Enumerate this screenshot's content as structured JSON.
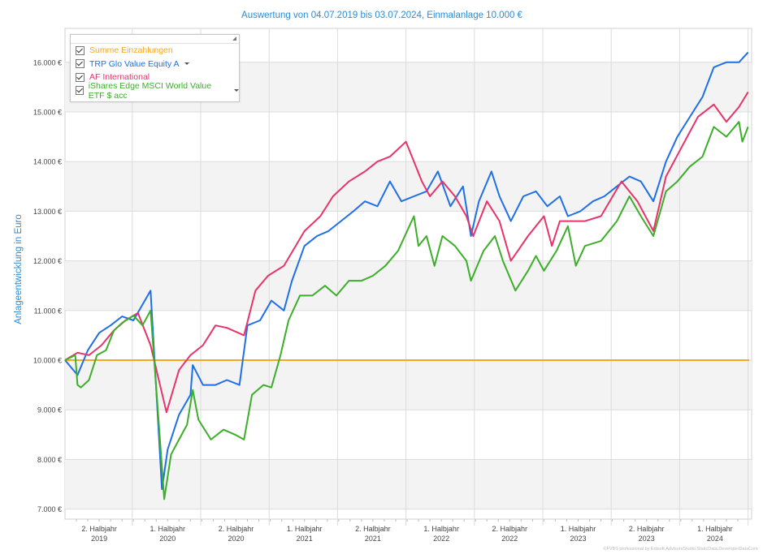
{
  "chart_data": {
    "type": "line",
    "title": "Auswertung von 04.07.2019 bis 03.07.2024, Einmalanlage 10.000 €",
    "ylabel": "Anlageentwicklung  in Euro",
    "xlabel": "",
    "x_unit": "months since 04.07.2019",
    "xlim": [
      0,
      60
    ],
    "ylim": [
      6800,
      16700
    ],
    "yticks": [
      7000,
      8000,
      9000,
      10000,
      11000,
      12000,
      13000,
      14000,
      15000,
      16000
    ],
    "ytick_labels": [
      "7.000 €",
      "8.000 €",
      "9.000 €",
      "10.000 €",
      "11.000 €",
      "12.000 €",
      "13.000 €",
      "14.000 €",
      "15.000 €",
      "16.000 €"
    ],
    "xticks": [
      {
        "l1": "2. Halbjahr",
        "l2": "2019"
      },
      {
        "l1": "1. Halbjahr",
        "l2": "2020"
      },
      {
        "l1": "2. Halbjahr",
        "l2": "2020"
      },
      {
        "l1": "1. Halbjahr",
        "l2": "2021"
      },
      {
        "l1": "2. Halbjahr",
        "l2": "2021"
      },
      {
        "l1": "1. Halbjahr",
        "l2": "2022"
      },
      {
        "l1": "2. Halbjahr",
        "l2": "2022"
      },
      {
        "l1": "1. Halbjahr",
        "l2": "2023"
      },
      {
        "l1": "2. Halbjahr",
        "l2": "2023"
      },
      {
        "l1": "1. Halbjahr",
        "l2": "2024"
      }
    ],
    "grid": true,
    "legend_position": "top-left",
    "series": [
      {
        "name": "Summe Einzahlungen",
        "color": "#f5a623",
        "dropdown": false,
        "points": [
          [
            0,
            10000
          ],
          [
            60,
            10000
          ]
        ]
      },
      {
        "name": "TRP Glo Value Equity A",
        "color": "#1f6fe8",
        "dropdown": true,
        "points": [
          [
            0,
            10000
          ],
          [
            1.1,
            9700
          ],
          [
            2,
            10200
          ],
          [
            3,
            10550
          ],
          [
            4,
            10700
          ],
          [
            5,
            10880
          ],
          [
            6,
            10800
          ],
          [
            7.5,
            11400
          ],
          [
            8.5,
            7400
          ],
          [
            9,
            8200
          ],
          [
            10,
            8900
          ],
          [
            11,
            9300
          ],
          [
            11.2,
            9900
          ],
          [
            12.1,
            9500
          ],
          [
            13.2,
            9500
          ],
          [
            14.2,
            9600
          ],
          [
            15.3,
            9500
          ],
          [
            16,
            10700
          ],
          [
            17.1,
            10800
          ],
          [
            18.1,
            11200
          ],
          [
            19.2,
            11000
          ],
          [
            19.9,
            11600
          ],
          [
            21,
            12300
          ],
          [
            22.1,
            12500
          ],
          [
            23.1,
            12600
          ],
          [
            24.2,
            12800
          ],
          [
            25.3,
            13000
          ],
          [
            26.3,
            13200
          ],
          [
            27.4,
            13100
          ],
          [
            28.5,
            13600
          ],
          [
            29.5,
            13200
          ],
          [
            30.6,
            13300
          ],
          [
            31.7,
            13400
          ],
          [
            32.7,
            13800
          ],
          [
            33.8,
            13100
          ],
          [
            34.9,
            13500
          ],
          [
            35.6,
            12500
          ],
          [
            36.3,
            13200
          ],
          [
            37.4,
            13800
          ],
          [
            38.1,
            13300
          ],
          [
            39.1,
            12800
          ],
          [
            40.2,
            13300
          ],
          [
            41.3,
            13400
          ],
          [
            42.3,
            13100
          ],
          [
            43.4,
            13300
          ],
          [
            44.1,
            12900
          ],
          [
            45.2,
            13000
          ],
          [
            46.3,
            13200
          ],
          [
            47.3,
            13300
          ],
          [
            48.4,
            13500
          ],
          [
            49.5,
            13700
          ],
          [
            50.5,
            13600
          ],
          [
            51.6,
            13200
          ],
          [
            52.7,
            14000
          ],
          [
            53.7,
            14500
          ],
          [
            54.8,
            14900
          ],
          [
            55.9,
            15300
          ],
          [
            56.9,
            15900
          ],
          [
            58,
            16000
          ],
          [
            59.1,
            16000
          ],
          [
            59.9,
            16200
          ]
        ]
      },
      {
        "name": "AF International",
        "color": "#e8336b",
        "dropdown": false,
        "points": [
          [
            0,
            10000
          ],
          [
            1.1,
            10150
          ],
          [
            2.1,
            10100
          ],
          [
            3.2,
            10300
          ],
          [
            4.3,
            10600
          ],
          [
            5.3,
            10800
          ],
          [
            6.4,
            10950
          ],
          [
            7.5,
            10300
          ],
          [
            8.9,
            8950
          ],
          [
            10,
            9800
          ],
          [
            11,
            10100
          ],
          [
            12.1,
            10300
          ],
          [
            13.2,
            10700
          ],
          [
            14.2,
            10650
          ],
          [
            15.7,
            10500
          ],
          [
            16.7,
            11400
          ],
          [
            17.8,
            11700
          ],
          [
            19.2,
            11900
          ],
          [
            21,
            12600
          ],
          [
            22.4,
            12900
          ],
          [
            23.5,
            13300
          ],
          [
            24.9,
            13600
          ],
          [
            26.3,
            13800
          ],
          [
            27.4,
            14000
          ],
          [
            28.5,
            14100
          ],
          [
            29.9,
            14400
          ],
          [
            31.3,
            13600
          ],
          [
            32,
            13300
          ],
          [
            33.1,
            13600
          ],
          [
            34.2,
            13300
          ],
          [
            35.2,
            12900
          ],
          [
            35.8,
            12500
          ],
          [
            37,
            13200
          ],
          [
            38.1,
            12800
          ],
          [
            39.1,
            12000
          ],
          [
            40.6,
            12500
          ],
          [
            42,
            12900
          ],
          [
            42.7,
            12300
          ],
          [
            43.4,
            12800
          ],
          [
            45.6,
            12800
          ],
          [
            47,
            12900
          ],
          [
            48.8,
            13600
          ],
          [
            50.2,
            13200
          ],
          [
            51.6,
            12600
          ],
          [
            52.7,
            13700
          ],
          [
            54.1,
            14300
          ],
          [
            55.5,
            14900
          ],
          [
            56.9,
            15150
          ],
          [
            58,
            14800
          ],
          [
            59.1,
            15100
          ],
          [
            59.9,
            15400
          ]
        ]
      },
      {
        "name": "iShares Edge MSCI World Value ETF $ acc",
        "color": "#3cae2a",
        "dropdown": true,
        "points": [
          [
            0,
            10000
          ],
          [
            0.9,
            10100
          ],
          [
            1.1,
            9500
          ],
          [
            1.4,
            9450
          ],
          [
            2.1,
            9600
          ],
          [
            2.8,
            10100
          ],
          [
            3.6,
            10200
          ],
          [
            4.3,
            10600
          ],
          [
            5,
            10750
          ],
          [
            6,
            10900
          ],
          [
            6.8,
            10700
          ],
          [
            7.5,
            11000
          ],
          [
            8.2,
            8800
          ],
          [
            8.7,
            7200
          ],
          [
            9.3,
            8100
          ],
          [
            10,
            8400
          ],
          [
            10.7,
            8700
          ],
          [
            11.2,
            9400
          ],
          [
            11.7,
            8800
          ],
          [
            12.8,
            8400
          ],
          [
            13.9,
            8600
          ],
          [
            14.9,
            8500
          ],
          [
            15.7,
            8400
          ],
          [
            16.4,
            9300
          ],
          [
            17.4,
            9500
          ],
          [
            18.1,
            9450
          ],
          [
            18.9,
            10100
          ],
          [
            19.6,
            10800
          ],
          [
            20.6,
            11300
          ],
          [
            21.7,
            11300
          ],
          [
            22.8,
            11500
          ],
          [
            23.8,
            11300
          ],
          [
            24.9,
            11600
          ],
          [
            26,
            11600
          ],
          [
            27,
            11700
          ],
          [
            28.1,
            11900
          ],
          [
            29.2,
            12200
          ],
          [
            30.6,
            12900
          ],
          [
            31,
            12300
          ],
          [
            31.7,
            12500
          ],
          [
            32.4,
            11900
          ],
          [
            33.1,
            12500
          ],
          [
            34.2,
            12300
          ],
          [
            35.2,
            12000
          ],
          [
            35.6,
            11600
          ],
          [
            36.7,
            12200
          ],
          [
            37.7,
            12500
          ],
          [
            38.4,
            12000
          ],
          [
            39.5,
            11400
          ],
          [
            40.6,
            11800
          ],
          [
            41.3,
            12100
          ],
          [
            42,
            11800
          ],
          [
            43.1,
            12200
          ],
          [
            44.1,
            12700
          ],
          [
            44.8,
            11900
          ],
          [
            45.6,
            12300
          ],
          [
            47,
            12400
          ],
          [
            48.4,
            12800
          ],
          [
            49.5,
            13300
          ],
          [
            50.5,
            12900
          ],
          [
            51.6,
            12500
          ],
          [
            52.7,
            13400
          ],
          [
            53.7,
            13600
          ],
          [
            54.8,
            13900
          ],
          [
            55.9,
            14100
          ],
          [
            56.9,
            14700
          ],
          [
            58,
            14500
          ],
          [
            59.1,
            14800
          ],
          [
            59.4,
            14400
          ],
          [
            59.9,
            14700
          ]
        ]
      }
    ]
  },
  "footer": "©FVBS professional by Edisoft.AdvisorsStudio.StaticData.DeveloperDataCore"
}
